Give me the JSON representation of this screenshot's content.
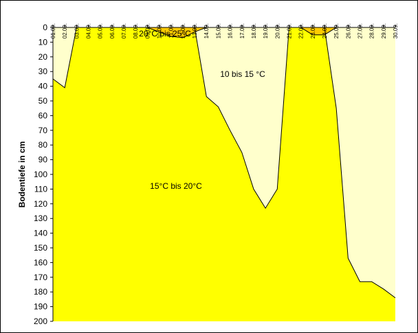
{
  "chart_data": {
    "type": "area",
    "title": "",
    "xlabel": "",
    "ylabel": "Bodentiefe in cm",
    "categories": [
      "01.09.",
      "02.09.",
      "03.09.",
      "04.09.",
      "05.09.",
      "06.09.",
      "07.09.",
      "08.09.",
      "09.09.",
      "10.09.",
      "11.09.",
      "12.09.",
      "13.09.",
      "14.09.",
      "15.09.",
      "16.09.",
      "17.09.",
      "18.09.",
      "19.09.",
      "20.09.",
      "21.09.",
      "22.09.",
      "23.09.",
      "24.09.",
      "25.09.",
      "26.09.",
      "27.09.",
      "28.09.",
      "29.09.",
      "30.09."
    ],
    "yticks": [
      0,
      10,
      20,
      30,
      40,
      50,
      60,
      70,
      80,
      90,
      100,
      110,
      120,
      130,
      140,
      150,
      160,
      170,
      180,
      190,
      200
    ],
    "ylim": [
      0,
      200
    ],
    "y_inverted": true,
    "series": [
      {
        "name": "15°C bis 20°C",
        "color": "#ffff00",
        "depth_lower_boundary_cm": [
          35,
          41,
          0,
          0,
          0,
          0,
          0,
          0,
          0,
          0,
          0,
          0,
          0,
          47,
          54,
          70,
          85,
          110,
          123,
          110,
          0,
          0,
          0,
          0,
          55,
          157,
          173,
          173,
          178,
          184
        ]
      },
      {
        "name": "20°C bis 25°C",
        "color": "#ffcc00",
        "depth_lower_boundary_cm": [
          0,
          0,
          0,
          0,
          0,
          0,
          0,
          0,
          0,
          3,
          6,
          7,
          3,
          0,
          0,
          0,
          0,
          0,
          0,
          0,
          0,
          0,
          5,
          5,
          0,
          0,
          0,
          0,
          0,
          0
        ]
      },
      {
        "name": "10 bis 15 °C",
        "color": "#ffffcc"
      }
    ],
    "annotations": [
      "20°C bis 25°C",
      "10 bis 15 °C",
      "15°C bis 20°C"
    ],
    "grid": false,
    "legend": "none"
  }
}
